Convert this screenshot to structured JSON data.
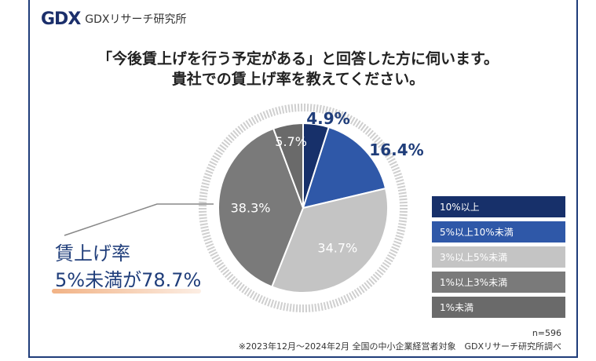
{
  "brand": {
    "logo_mark": "GDX",
    "name": "GDXリサーチ研究所"
  },
  "title": {
    "line1": "「今後賃上げを行う予定がある」と回答した方に伺います。",
    "line2": "貴社での賃上げ率を教えてください。"
  },
  "callout": {
    "line1": "賃上げ率",
    "line2": "5%未満が78.7%"
  },
  "note": {
    "n": "n=596",
    "source": "※2023年12月～2024年2月 全国の中小企業経営者対象　GDXリサーチ研究所調べ"
  },
  "colors": {
    "s1": "#17306a",
    "s2": "#2f58a8",
    "s3": "#c4c4c4",
    "s4": "#7a7a7a",
    "s5": "#6a6a6a"
  },
  "chart_data": {
    "type": "pie",
    "title": "貴社での賃上げ率",
    "categories": [
      "10%以上",
      "5%以上10%未満",
      "3%以上5%未満",
      "1%以上3%未満",
      "1%未満"
    ],
    "values": [
      4.9,
      16.4,
      34.7,
      38.3,
      5.7
    ],
    "labels": [
      "4.9%",
      "16.4%",
      "34.7%",
      "38.3%",
      "5.7%"
    ],
    "legend_position": "right"
  }
}
